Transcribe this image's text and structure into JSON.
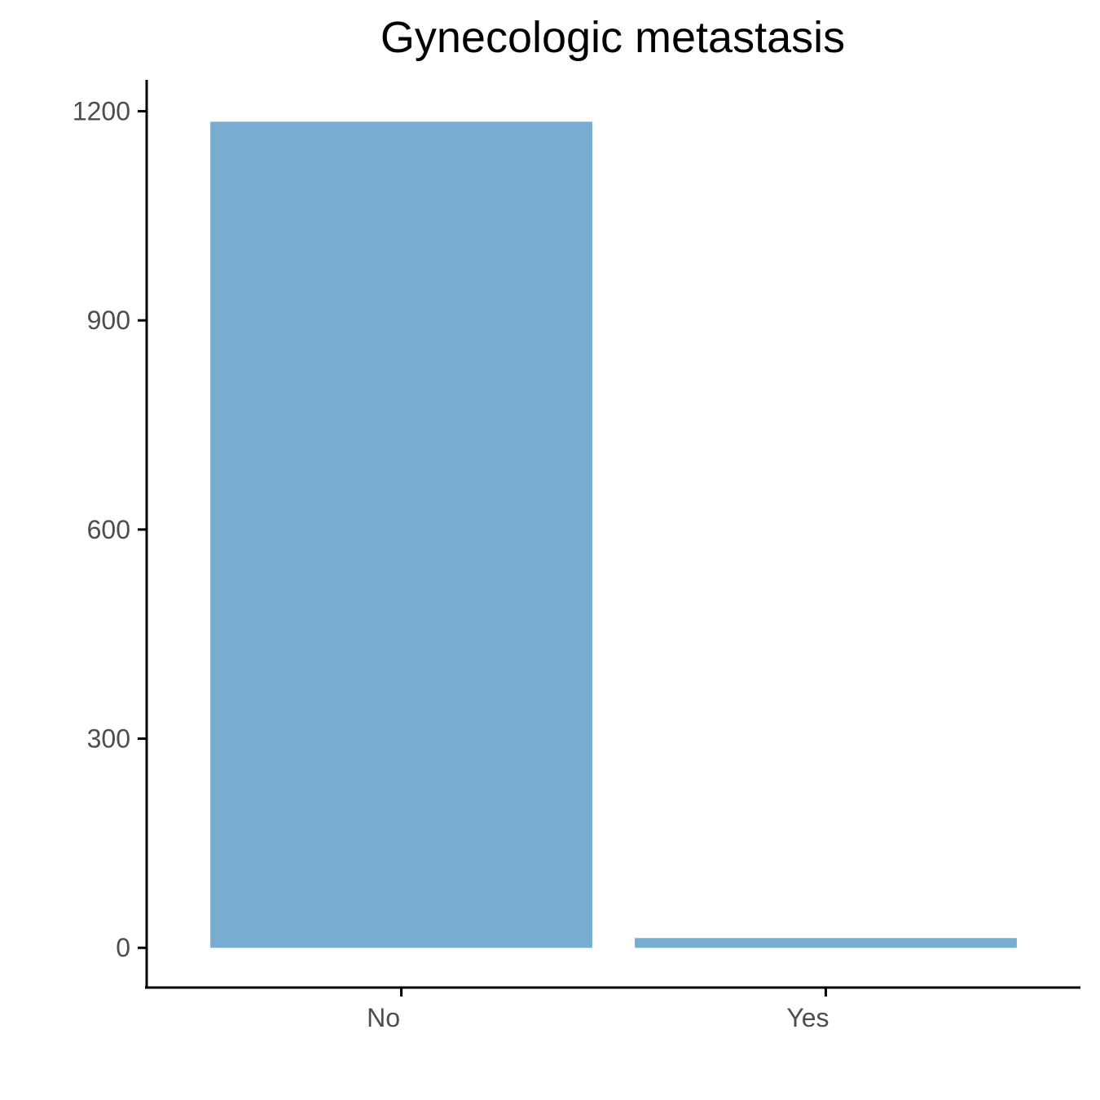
{
  "chart_data": {
    "type": "bar",
    "title": "Gynecologic metastasis",
    "xlabel": "",
    "ylabel": "",
    "categories": [
      "No",
      "Yes"
    ],
    "values": [
      1185,
      14
    ],
    "ylim": [
      -57,
      1245
    ],
    "yticks": [
      0,
      300,
      600,
      900,
      1200
    ],
    "ytick_labels": [
      "0",
      "300",
      "600",
      "900",
      "1200"
    ],
    "bar_color": "#78acd1",
    "grid": false,
    "legend": "none"
  }
}
